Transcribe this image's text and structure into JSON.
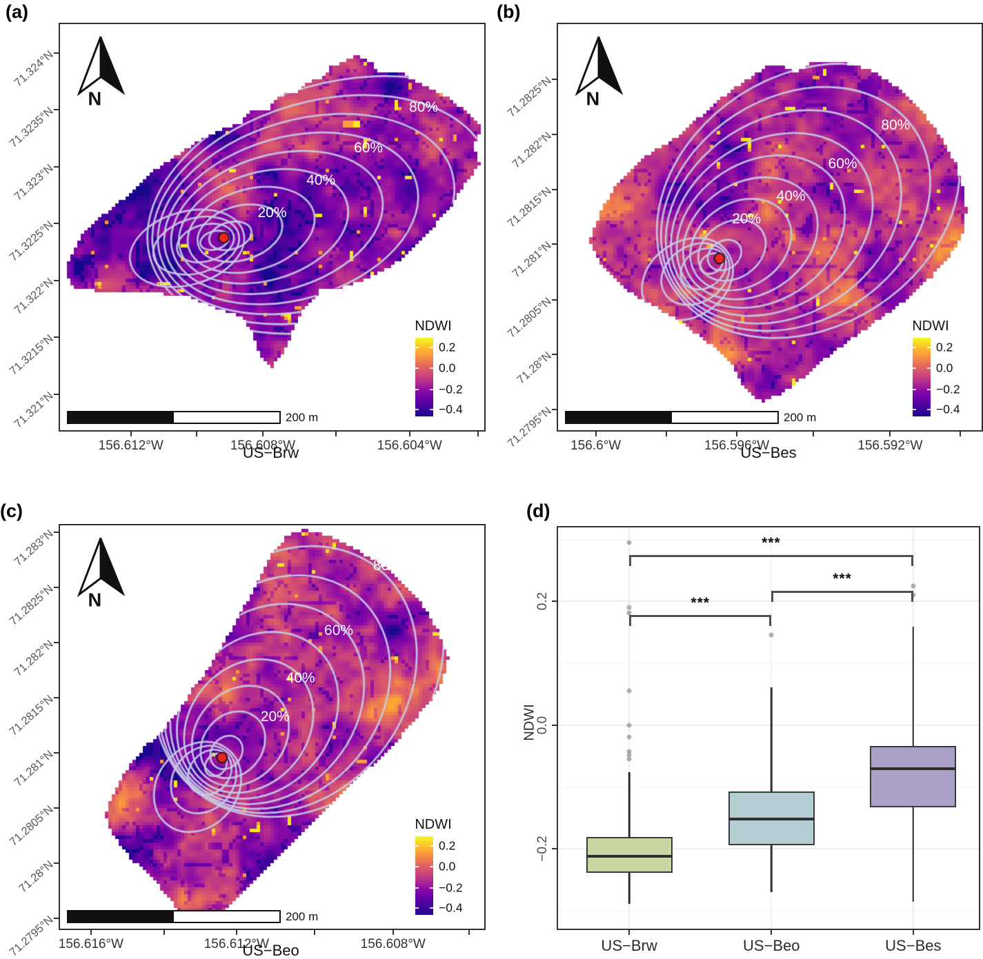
{
  "colors": {
    "tower_dot": "#e8251f",
    "contour_line": "#c8c9e4",
    "box_border": "#3a3a3a",
    "median_line": "#2e2e2e",
    "outlier_dot": "#9b9b9b",
    "bracket": "#4f4f4f",
    "axis_text_gray": "#555555",
    "grid_major": "#ececec",
    "box_fill_us_brw": "#c9d8a3",
    "box_fill_us_beo": "#b4ced3",
    "box_fill_us_bes": "#aba1c8"
  },
  "maps": [
    {
      "label": "(a)",
      "site": "US−Brw",
      "north_label": "N",
      "scale_text": "200 m",
      "legend_title": "NDWI",
      "legend_ticks": [
        "0.2",
        "0.0",
        "−0.2",
        "−0.4"
      ],
      "contour_labels": [
        "20%",
        "40%",
        "60%",
        "80%"
      ],
      "x_ticks": [
        "156.612°W",
        "156.608°W",
        "156.604°W"
      ],
      "y_ticks": [
        "71.324°N",
        "71.3235°N",
        "71.323°N",
        "71.3225°N",
        "71.322°N",
        "71.3215°N",
        "71.321°N"
      ]
    },
    {
      "label": "(b)",
      "site": "US−Bes",
      "north_label": "N",
      "scale_text": "200 m",
      "legend_title": "NDWI",
      "legend_ticks": [
        "0.2",
        "0.0",
        "−0.2",
        "−0.4"
      ],
      "contour_labels": [
        "20%",
        "40%",
        "60%",
        "80%"
      ],
      "x_ticks": [
        "156.6°W",
        "156.596°W",
        "156.592°W"
      ],
      "y_ticks": [
        "71.2825°N",
        "71.282°N",
        "71.2815°N",
        "71.281°N",
        "71.2805°N",
        "71.28°N",
        "71.2795°N"
      ]
    },
    {
      "label": "(c)",
      "site": "US−Beo",
      "north_label": "N",
      "scale_text": "200 m",
      "legend_title": "NDWI",
      "legend_ticks": [
        "0.2",
        "0.0",
        "−0.2",
        "−0.4"
      ],
      "contour_labels": [
        "20%",
        "40%",
        "60%",
        "80%"
      ],
      "x_ticks": [
        "156.616°W",
        "156.612°W",
        "156.608°W"
      ],
      "y_ticks": [
        "71.283°N",
        "71.2825°N",
        "71.282°N",
        "71.2815°N",
        "71.281°N",
        "71.2805°N",
        "71.28°N",
        "71.2795°N"
      ]
    }
  ],
  "boxplot": {
    "label": "(d)"
  },
  "chart_data": [
    {
      "type": "heatmap",
      "panel": "a",
      "site": "US−Brw",
      "variable": "NDWI",
      "colormap": "plasma",
      "colorbar_ticks": [
        0.2,
        0.0,
        -0.2,
        -0.4
      ],
      "contour_levels_percent": [
        20,
        40,
        60,
        80
      ],
      "scale_bar_m": 200,
      "x_ticks": [
        "156.612°W",
        "156.608°W",
        "156.604°W"
      ],
      "y_ticks": [
        "71.324°N",
        "71.3235°N",
        "71.323°N",
        "71.3225°N",
        "71.322°N",
        "71.3215°N",
        "71.321°N"
      ],
      "tower_marker": "red dot"
    },
    {
      "type": "heatmap",
      "panel": "b",
      "site": "US−Bes",
      "variable": "NDWI",
      "colormap": "plasma",
      "colorbar_ticks": [
        0.2,
        0.0,
        -0.2,
        -0.4
      ],
      "contour_levels_percent": [
        20,
        40,
        60,
        80
      ],
      "scale_bar_m": 200,
      "x_ticks": [
        "156.6°W",
        "156.596°W",
        "156.592°W"
      ],
      "y_ticks": [
        "71.2825°N",
        "71.282°N",
        "71.2815°N",
        "71.281°N",
        "71.2805°N",
        "71.28°N",
        "71.2795°N"
      ],
      "tower_marker": "red dot"
    },
    {
      "type": "heatmap",
      "panel": "c",
      "site": "US−Beo",
      "variable": "NDWI",
      "colormap": "plasma",
      "colorbar_ticks": [
        0.2,
        0.0,
        -0.2,
        -0.4
      ],
      "contour_levels_percent": [
        20,
        40,
        60,
        80
      ],
      "scale_bar_m": 200,
      "x_ticks": [
        "156.616°W",
        "156.612°W",
        "156.608°W"
      ],
      "y_ticks": [
        "71.283°N",
        "71.2825°N",
        "71.282°N",
        "71.2815°N",
        "71.281°N",
        "71.2805°N",
        "71.28°N",
        "71.2795°N"
      ],
      "tower_marker": "red dot"
    },
    {
      "type": "boxplot",
      "panel": "d",
      "ylabel": "NDWI",
      "ylim": [
        -0.33,
        0.32
      ],
      "yticks": [
        0.2,
        0.0,
        -0.2
      ],
      "ytick_labels": [
        "0.2",
        "0.0",
        "−0.2"
      ],
      "minor_gridlines": [
        0.3,
        0.1,
        -0.1,
        -0.3
      ],
      "categories": [
        "US−Brw",
        "US−Beo",
        "US−Bes"
      ],
      "series": [
        {
          "name": "US−Brw",
          "fill": "#c9d8a3",
          "whisker_low": -0.29,
          "q1": -0.24,
          "median": -0.213,
          "q3": -0.181,
          "whisker_high": -0.077,
          "outliers": [
            0.295,
            0.19,
            0.182,
            0.055,
            0.0,
            -0.019,
            -0.043,
            -0.048,
            -0.055
          ]
        },
        {
          "name": "US−Beo",
          "fill": "#b4ced3",
          "whisker_low": -0.271,
          "q1": -0.195,
          "median": -0.152,
          "q3": -0.108,
          "whisker_high": 0.061,
          "outliers": [
            0.146
          ]
        },
        {
          "name": "US−Bes",
          "fill": "#aba1c8",
          "whisker_low": -0.287,
          "q1": -0.133,
          "median": -0.071,
          "q3": -0.034,
          "whisker_high": 0.159,
          "outliers": [
            0.225,
            0.21
          ]
        }
      ],
      "significance": [
        {
          "pair": [
            0,
            1
          ],
          "label": "***",
          "y": 0.178
        },
        {
          "pair": [
            1,
            2
          ],
          "label": "***",
          "y": 0.217
        },
        {
          "pair": [
            0,
            2
          ],
          "label": "***",
          "y": 0.275
        }
      ]
    }
  ]
}
